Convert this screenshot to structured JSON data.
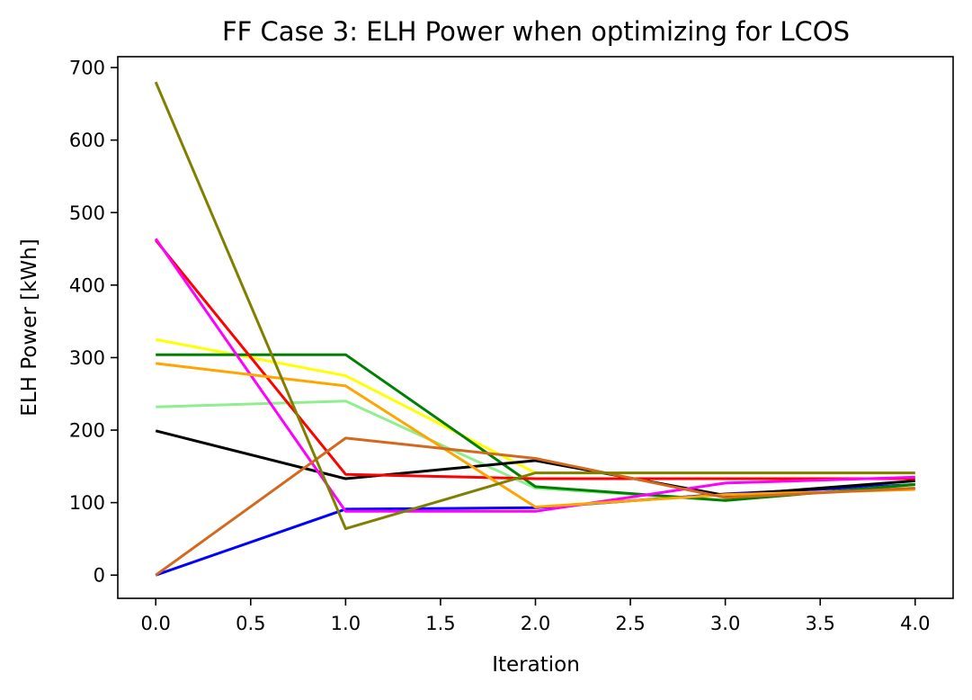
{
  "chart_data": {
    "type": "line",
    "title": "FF Case 3: ELH Power when optimizing for LCOS",
    "xlabel": "Iteration",
    "ylabel": "ELH Power [kWh]",
    "x": [
      0,
      1,
      2,
      3,
      4
    ],
    "xlim": [
      -0.2,
      4.2
    ],
    "ylim": [
      -32,
      715
    ],
    "xticks": [
      0.0,
      0.5,
      1.0,
      1.5,
      2.0,
      2.5,
      3.0,
      3.5,
      4.0
    ],
    "xtick_labels": [
      "0.0",
      "0.5",
      "1.0",
      "1.5",
      "2.0",
      "2.5",
      "3.0",
      "3.5",
      "4.0"
    ],
    "yticks": [
      0,
      100,
      200,
      300,
      400,
      500,
      600,
      700
    ],
    "ytick_labels": [
      "0",
      "100",
      "200",
      "300",
      "400",
      "500",
      "600",
      "700"
    ],
    "grid": false,
    "legend": false,
    "series": [
      {
        "color": "#0000ff",
        "values": [
          0,
          91,
          93,
          112,
          125
        ]
      },
      {
        "color": "#90ee90",
        "values": [
          232,
          240,
          120,
          103,
          125
        ]
      },
      {
        "color": "#ffff00",
        "values": [
          325,
          275,
          141,
          141,
          141
        ]
      },
      {
        "color": "#008000",
        "values": [
          304,
          304,
          122,
          103,
          125
        ]
      },
      {
        "color": "#000000",
        "values": [
          199,
          133,
          158,
          110,
          130
        ]
      },
      {
        "color": "#ff0000",
        "values": [
          462,
          139,
          133,
          133,
          133
        ]
      },
      {
        "color": "#ff00ff",
        "values": [
          464,
          88,
          88,
          127,
          135
        ]
      },
      {
        "color": "#ffa500",
        "values": [
          292,
          261,
          94,
          111,
          118
        ]
      },
      {
        "color": "#d2691e",
        "values": [
          0,
          189,
          161,
          107,
          120
        ]
      },
      {
        "color": "#808000",
        "values": [
          680,
          64,
          141,
          141,
          141
        ]
      }
    ]
  }
}
